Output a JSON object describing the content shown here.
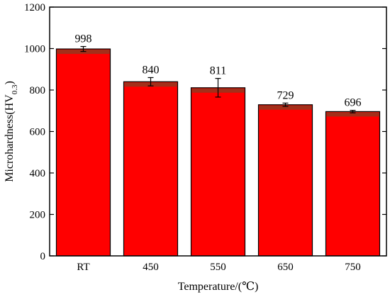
{
  "chart_data": {
    "type": "bar",
    "categories": [
      "RT",
      "450",
      "550",
      "650",
      "750"
    ],
    "values": [
      998,
      840,
      811,
      729,
      696
    ],
    "errors": [
      12,
      20,
      45,
      8,
      6
    ],
    "data_labels": [
      "998",
      "840",
      "811",
      "729",
      "696"
    ],
    "title": "",
    "xlabel": "Temperature/(℃)",
    "ylabel": {
      "base": "Microhardness(HV",
      "sub": "0.3",
      "end": ")"
    },
    "ylim": [
      0,
      1200
    ],
    "yticks": [
      0,
      200,
      400,
      600,
      800,
      1000,
      1200
    ],
    "grid": false,
    "legend": "none",
    "colors": {
      "bar": "#ff0000",
      "bar_edge": "#000000",
      "bar_cap": "#a32f1a",
      "error_bar": "#000000"
    }
  }
}
